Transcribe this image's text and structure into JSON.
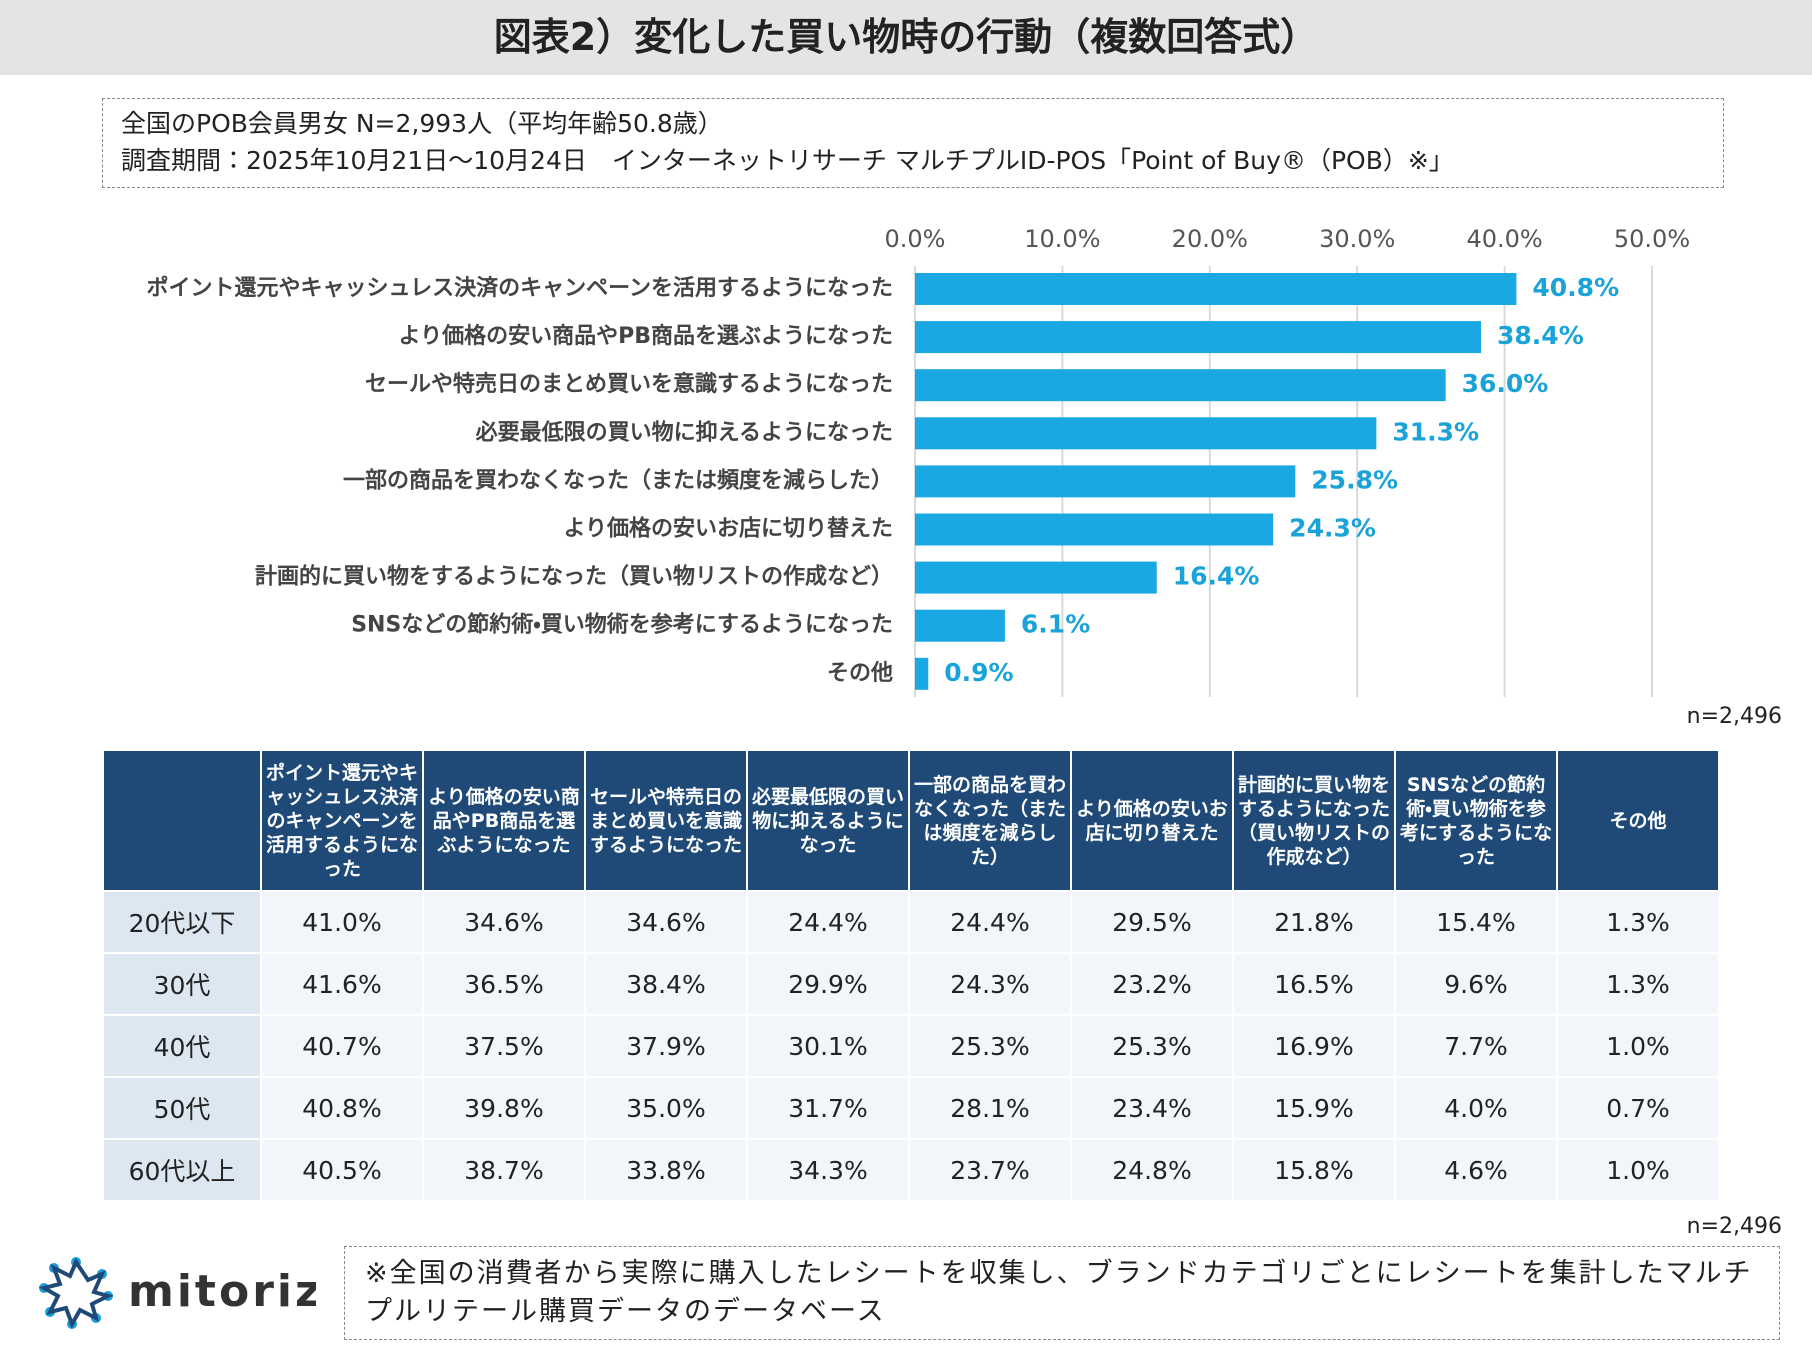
{
  "header": {
    "title": "図表2）変化した買い物時の行動（複数回答式）"
  },
  "info": {
    "lines": [
      "全国のPOB会員男女 N=2,993人（平均年齢50.8歳）",
      "調査期間：2025年10月21日〜10月24日　インターネットリサーチ マルチプルID-POS「Point of Buy®（POB）※」"
    ]
  },
  "chart_data": {
    "type": "bar",
    "orientation": "horizontal",
    "color": "#1aa8e3",
    "value_label_color": "#1aa3d9",
    "grid": true,
    "categories": [
      "ポイント還元やキャッシュレス決済のキャンペーンを活用するようになった",
      "より価格の安い商品やPB商品を選ぶようになった",
      "セールや特売日のまとめ買いを意識するようになった",
      "必要最低限の買い物に抑えるようになった",
      "一部の商品を買わなくなった（または頻度を減らした）",
      "より価格の安いお店に切り替えた",
      "計画的に買い物をするようになった（買い物リストの作成など）",
      "SNSなどの節約術・買い物術を参考にするようになった",
      "その他"
    ],
    "values": [
      40.8,
      38.4,
      36.0,
      31.3,
      25.8,
      24.3,
      16.4,
      6.1,
      0.9
    ],
    "value_labels": [
      "40.8%",
      "38.4%",
      "36.0%",
      "31.3%",
      "25.8%",
      "24.3%",
      "16.4%",
      "6.1%",
      "0.9%"
    ],
    "xlim": [
      0,
      50
    ],
    "xticks": [
      {
        "value": 0,
        "label": "0.0%"
      },
      {
        "value": 10,
        "label": "10.0%"
      },
      {
        "value": 20,
        "label": "20.0%"
      },
      {
        "value": 30,
        "label": "30.0%"
      },
      {
        "value": 40,
        "label": "40.0%"
      },
      {
        "value": 50,
        "label": "50.0%"
      }
    ],
    "note": "n=2,496"
  },
  "table": {
    "columns": [
      "ポイント還元やキャッシュレス決済のキャンペーンを活用するようになった",
      "より価格の安い商品やPB商品を選ぶようになった",
      "セールや特売日のまとめ買いを意識するようになった",
      "必要最低限の買い物に抑えるようになった",
      "一部の商品を買わなくなった（または頻度を減らした）",
      "より価格の安いお店に切り替えた",
      "計画的に買い物をするようになった（買い物リストの作成など）",
      "SNSなどの節約術・買い物術を参考にするようになった",
      "その他"
    ],
    "rows": [
      {
        "label": "20代以下",
        "cells": [
          "41.0%",
          "34.6%",
          "34.6%",
          "24.4%",
          "24.4%",
          "29.5%",
          "21.8%",
          "15.4%",
          "1.3%"
        ]
      },
      {
        "label": "30代",
        "cells": [
          "41.6%",
          "36.5%",
          "38.4%",
          "29.9%",
          "24.3%",
          "23.2%",
          "16.5%",
          "9.6%",
          "1.3%"
        ]
      },
      {
        "label": "40代",
        "cells": [
          "40.7%",
          "37.5%",
          "37.9%",
          "30.1%",
          "25.3%",
          "25.3%",
          "16.9%",
          "7.7%",
          "1.0%"
        ]
      },
      {
        "label": "50代",
        "cells": [
          "40.8%",
          "39.8%",
          "35.0%",
          "31.7%",
          "28.1%",
          "23.4%",
          "15.9%",
          "4.0%",
          "0.7%"
        ]
      },
      {
        "label": "60代以上",
        "cells": [
          "40.5%",
          "38.7%",
          "33.8%",
          "34.3%",
          "23.7%",
          "24.8%",
          "15.8%",
          "4.6%",
          "1.0%"
        ]
      }
    ],
    "note": "n=2,496"
  },
  "footer": {
    "logo": "mitoriz",
    "note": "※全国の消費者から実際に購入したレシートを収集し、ブランドカテゴリごとにレシートを集計したマルチプルリテール購買データのデータベース"
  }
}
